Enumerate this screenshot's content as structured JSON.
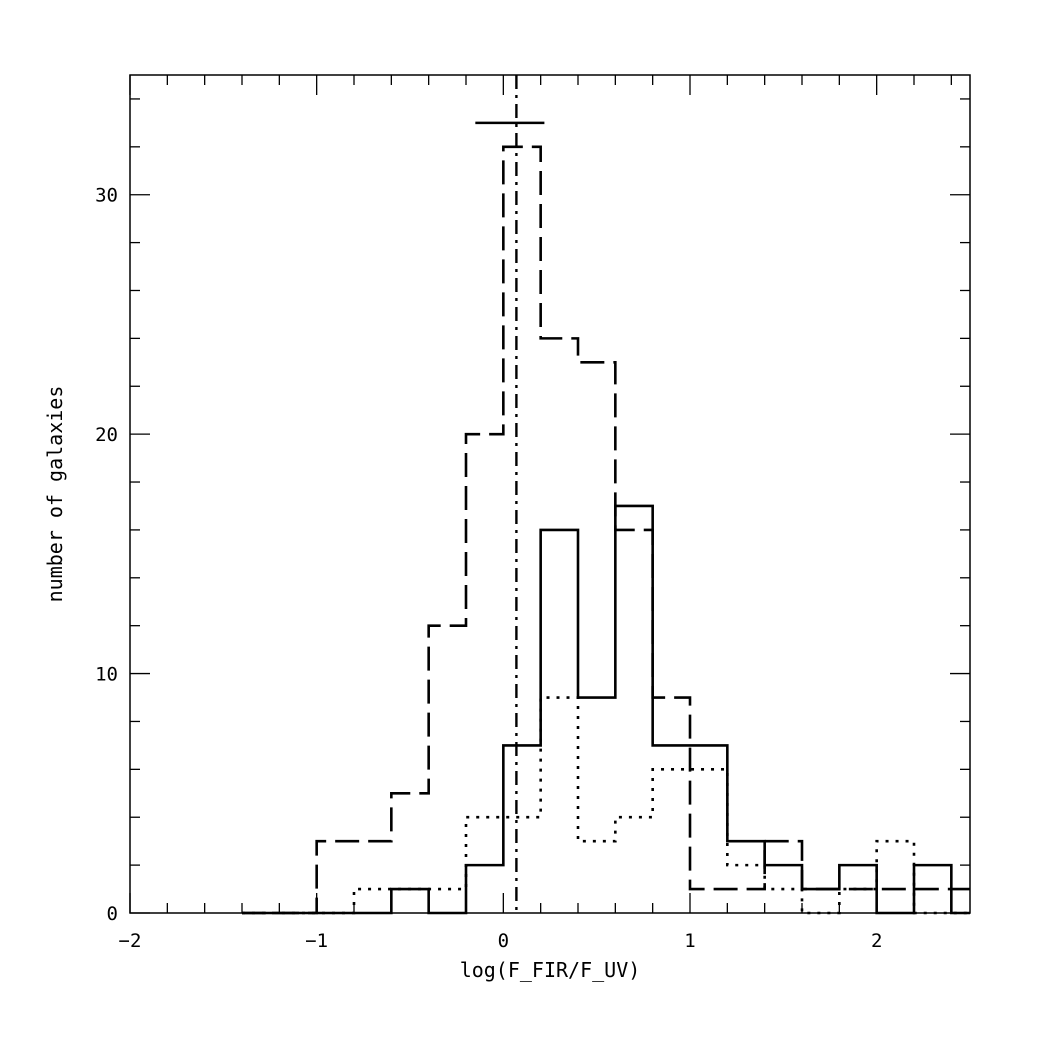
{
  "chart_data": {
    "type": "histogram",
    "xlabel": "log(F_FIR/F_UV)",
    "ylabel": "number of galaxies",
    "xlim": [
      -2,
      2.5
    ],
    "ylim": [
      0,
      35
    ],
    "x_major_ticks": [
      -2,
      -1,
      0,
      1,
      2
    ],
    "x_tick_labels": [
      "−2",
      "−1",
      "0",
      "1",
      "2"
    ],
    "x_minor_step": 0.2,
    "y_major_ticks": [
      0,
      10,
      20,
      30
    ],
    "y_tick_labels": [
      "0",
      "10",
      "20",
      "30"
    ],
    "y_minor_step": 2,
    "bin_edges": [
      -1.4,
      -1.2,
      -1.0,
      -0.8,
      -0.6,
      -0.4,
      -0.2,
      0.0,
      0.2,
      0.4,
      0.6,
      0.8,
      1.0,
      1.2,
      1.4,
      1.6,
      1.8,
      2.0,
      2.2,
      2.4,
      2.5
    ],
    "series": [
      {
        "line_style": "dashed",
        "counts": [
          0,
          0,
          3,
          3,
          5,
          12,
          20,
          32,
          24,
          23,
          16,
          9,
          1,
          1,
          3,
          1,
          1,
          1,
          1,
          1
        ]
      },
      {
        "line_style": "solid",
        "counts": [
          0,
          0,
          0,
          0,
          1,
          0,
          2,
          7,
          16,
          9,
          17,
          7,
          7,
          3,
          2,
          1,
          2,
          0,
          2,
          0
        ]
      },
      {
        "line_style": "dotted",
        "counts": [
          0,
          0,
          0,
          1,
          1,
          1,
          4,
          4,
          9,
          3,
          4,
          6,
          6,
          2,
          1,
          0,
          1,
          3,
          0,
          0
        ]
      }
    ],
    "reference_line": {
      "line_style": "dash-dot",
      "x": 0.07,
      "error_bar": {
        "y": 33,
        "xmin": -0.15,
        "xmax": 0.22
      }
    },
    "grid": false,
    "legend": "none"
  }
}
